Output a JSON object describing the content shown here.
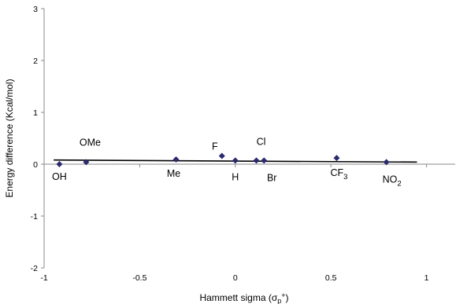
{
  "chart_data": {
    "type": "scatter",
    "title": "",
    "xlabel": "Hammett sigma (σp+)",
    "ylabel": "Energy difference (Kcal/mol)",
    "xlim": [
      -1,
      1.15
    ],
    "ylim": [
      -2,
      3
    ],
    "xticks": [
      -1,
      -0.5,
      0,
      0.5,
      1
    ],
    "xtick_labels": [
      "-1",
      "-0.5",
      "0",
      "0.5",
      "1"
    ],
    "yticks": [
      -2,
      -1,
      0,
      1,
      2,
      3
    ],
    "ytick_labels": [
      "-2",
      "-1",
      "0",
      "1",
      "2",
      "3"
    ],
    "grid": false,
    "marker_color": "#2b2a6e",
    "series": [
      {
        "points": [
          {
            "label": "OH",
            "x": -0.92,
            "y": 0.0
          },
          {
            "label": "OMe",
            "x": -0.78,
            "y": 0.04
          },
          {
            "label": "Me",
            "x": -0.31,
            "y": 0.09
          },
          {
            "label": "F",
            "x": -0.07,
            "y": 0.16
          },
          {
            "label": "H",
            "x": 0.0,
            "y": 0.07
          },
          {
            "label": "Cl",
            "x": 0.11,
            "y": 0.07
          },
          {
            "label": "Br",
            "x": 0.15,
            "y": 0.07
          },
          {
            "label": "CF3",
            "x": 0.53,
            "y": 0.12
          },
          {
            "label": "NO2",
            "x": 0.79,
            "y": 0.04
          }
        ]
      }
    ],
    "trendline": {
      "x": [
        -0.95,
        0.95
      ],
      "y": [
        0.08,
        0.04
      ]
    }
  }
}
